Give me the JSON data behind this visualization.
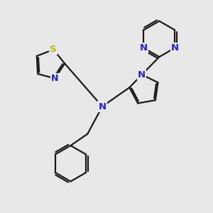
{
  "bg_color": "#e8e8e8",
  "bond_color": "#1a1a1a",
  "N_color": "#2222cc",
  "S_color": "#bbbb00",
  "lw": 1.6,
  "dbo": 0.07,
  "xlim": [
    0,
    10
  ],
  "ylim": [
    0,
    10
  ]
}
